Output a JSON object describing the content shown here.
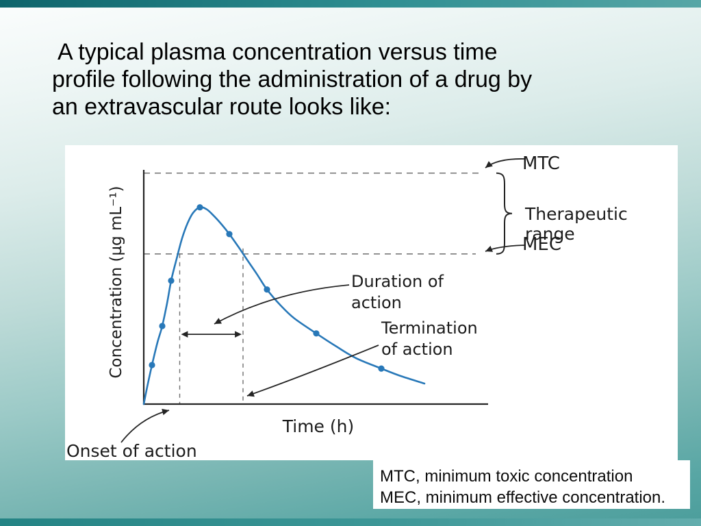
{
  "slide": {
    "title_lines": [
      "A typical plasma concentration versus time",
      "profile following the administration of a drug by",
      "an extravascular route looks like:"
    ],
    "footnotes": [
      "MTC, minimum toxic concentration",
      "MEC, minimum effective concentration."
    ],
    "theme": {
      "background_teal": "#4b9d9b",
      "top_bar_teal": "#0e646b",
      "title_color": "#000000"
    }
  },
  "chart_data": {
    "type": "line",
    "title": "",
    "xlabel": "Time (h)",
    "ylabel": "Concentration (µg mL⁻¹)",
    "xlim": [
      0,
      10
    ],
    "ylim": [
      0,
      10.2
    ],
    "grid": false,
    "legend": "none",
    "axis_ticks": "none",
    "mtc_value": 10.0,
    "mec_value": 6.5,
    "onset_time": 1.05,
    "termination_time": 2.9,
    "duration_arrow_level": 3.02,
    "curve": [
      [
        0,
        0
      ],
      [
        0.1,
        0.74
      ],
      [
        0.24,
        1.69
      ],
      [
        0.4,
        2.67
      ],
      [
        0.54,
        3.38
      ],
      [
        0.68,
        4.36
      ],
      [
        0.8,
        5.34
      ],
      [
        0.96,
        6.29
      ],
      [
        1.12,
        7.18
      ],
      [
        1.28,
        7.83
      ],
      [
        1.44,
        8.28
      ],
      [
        1.64,
        8.52
      ],
      [
        1.84,
        8.43
      ],
      [
        2.04,
        8.16
      ],
      [
        2.28,
        7.77
      ],
      [
        2.5,
        7.36
      ],
      [
        2.76,
        6.82
      ],
      [
        3.0,
        6.29
      ],
      [
        3.3,
        5.64
      ],
      [
        3.6,
        4.96
      ],
      [
        4.0,
        4.27
      ],
      [
        4.4,
        3.71
      ],
      [
        5.04,
        3.06
      ],
      [
        5.6,
        2.52
      ],
      [
        6.2,
        1.99
      ],
      [
        6.94,
        1.54
      ],
      [
        7.5,
        1.22
      ],
      [
        8.2,
        0.89
      ]
    ],
    "markers": [
      [
        0.24,
        1.69
      ],
      [
        0.54,
        3.38
      ],
      [
        0.8,
        5.34
      ],
      [
        1.64,
        8.52
      ],
      [
        2.5,
        7.36
      ],
      [
        3.6,
        4.96
      ],
      [
        5.04,
        3.06
      ],
      [
        6.94,
        1.54
      ]
    ],
    "labels": {
      "mtc": "MTC",
      "therapeutic_range": "Therapeutic range",
      "mec": "MEC",
      "duration_lines": [
        "Duration of",
        "action"
      ],
      "termination_lines": [
        "Termination",
        "of action"
      ],
      "onset": "Onset of action"
    },
    "curve_color": "#2878b8",
    "axis_color": "#242424",
    "dash_color": "#6e6e6e"
  }
}
